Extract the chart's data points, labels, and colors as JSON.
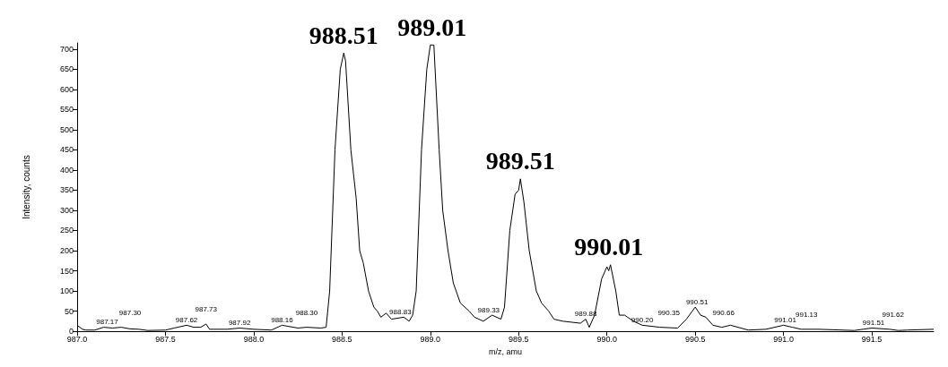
{
  "chart_data": {
    "type": "line",
    "xlabel": "m/z, amu",
    "ylabel": "Intensity, counts",
    "x": [
      987.0,
      987.03,
      987.05,
      987.1,
      987.15,
      987.2,
      987.25,
      987.3,
      987.35,
      987.4,
      987.5,
      987.55,
      987.62,
      987.66,
      987.7,
      987.73,
      987.75,
      987.85,
      987.92,
      988.0,
      988.1,
      988.16,
      988.25,
      988.3,
      988.38,
      988.41,
      988.43,
      988.46,
      988.49,
      988.51,
      988.52,
      988.55,
      988.58,
      988.6,
      988.62,
      988.65,
      988.68,
      988.7,
      988.72,
      988.75,
      988.78,
      988.85,
      988.88,
      988.9,
      988.92,
      988.95,
      988.98,
      989.0,
      989.02,
      989.05,
      989.07,
      989.1,
      989.13,
      989.17,
      989.22,
      989.25,
      989.3,
      989.35,
      989.4,
      989.42,
      989.45,
      989.48,
      989.5,
      989.51,
      989.53,
      989.56,
      989.6,
      989.63,
      989.67,
      989.7,
      989.75,
      989.85,
      989.88,
      989.9,
      989.93,
      989.97,
      990.0,
      990.01,
      990.02,
      990.05,
      990.07,
      990.1,
      990.15,
      990.2,
      990.3,
      990.4,
      990.45,
      990.5,
      990.53,
      990.56,
      990.6,
      990.65,
      990.7,
      990.8,
      990.9,
      991.0,
      991.05,
      991.1,
      991.2,
      991.4,
      991.5,
      991.6,
      991.65,
      991.7,
      991.85
    ],
    "series": [
      {
        "color": "#000000",
        "values": [
          15,
          5,
          3,
          3,
          10,
          8,
          10,
          6,
          5,
          2,
          3,
          8,
          15,
          10,
          10,
          18,
          5,
          5,
          8,
          5,
          3,
          15,
          8,
          10,
          8,
          10,
          100,
          450,
          650,
          690,
          670,
          450,
          330,
          200,
          170,
          100,
          60,
          50,
          35,
          45,
          30,
          35,
          25,
          40,
          100,
          450,
          650,
          710,
          710,
          450,
          300,
          200,
          120,
          70,
          50,
          35,
          25,
          40,
          30,
          60,
          250,
          340,
          350,
          378,
          320,
          200,
          100,
          70,
          50,
          30,
          25,
          20,
          30,
          10,
          40,
          130,
          160,
          150,
          165,
          100,
          40,
          40,
          25,
          15,
          10,
          8,
          30,
          60,
          40,
          35,
          15,
          10,
          15,
          3,
          5,
          15,
          10,
          5,
          5,
          2,
          8,
          5,
          2,
          3,
          5
        ]
      }
    ],
    "xlim": [
      987,
      991.85
    ],
    "ylim": [
      0,
      715
    ],
    "xticks": [
      {
        "value": 987,
        "label": "987.0"
      },
      {
        "value": 987.5,
        "label": "987.5"
      },
      {
        "value": 988,
        "label": "988.0"
      },
      {
        "value": 988.5,
        "label": "988.5"
      },
      {
        "value": 989,
        "label": "989.0"
      },
      {
        "value": 989.5,
        "label": "989.5"
      },
      {
        "value": 990,
        "label": "990.0"
      },
      {
        "value": 990.5,
        "label": "990.5"
      },
      {
        "value": 991,
        "label": "991.0"
      },
      {
        "value": 991.5,
        "label": "991.5"
      }
    ],
    "yticks": [
      0,
      50,
      100,
      150,
      200,
      250,
      300,
      350,
      400,
      450,
      500,
      550,
      600,
      650,
      700
    ],
    "grid": false,
    "marker": "none",
    "line_style": "solid",
    "annotations": [
      {
        "text": "988.51",
        "x": 988.51,
        "y": 690
      },
      {
        "text": "989.01",
        "x": 989.01,
        "y": 710
      },
      {
        "text": "989.51",
        "x": 989.51,
        "y": 378
      },
      {
        "text": "990.01",
        "x": 990.01,
        "y": 165
      },
      {
        "text": "987.17",
        "x": 987.17,
        "y": 10
      },
      {
        "text": "987.30",
        "x": 987.3,
        "y": 10
      },
      {
        "text": "987.62",
        "x": 987.62,
        "y": 15
      },
      {
        "text": "987.73",
        "x": 987.73,
        "y": 18
      },
      {
        "text": "987.92",
        "x": 987.92,
        "y": 8
      },
      {
        "text": "988.16",
        "x": 988.16,
        "y": 15
      },
      {
        "text": "988.30",
        "x": 988.3,
        "y": 10
      },
      {
        "text": "988.83",
        "x": 988.83,
        "y": 35
      },
      {
        "text": "989.33",
        "x": 989.33,
        "y": 40
      },
      {
        "text": "989.88",
        "x": 989.88,
        "y": 30
      },
      {
        "text": "990.20",
        "x": 990.2,
        "y": 15
      },
      {
        "text": "990.35",
        "x": 990.35,
        "y": 10
      },
      {
        "text": "990.51",
        "x": 990.51,
        "y": 60
      },
      {
        "text": "990.66",
        "x": 990.66,
        "y": 10
      },
      {
        "text": "991.01",
        "x": 991.01,
        "y": 15
      },
      {
        "text": "991.13",
        "x": 991.13,
        "y": 5
      },
      {
        "text": "991.51",
        "x": 991.51,
        "y": 8
      },
      {
        "text": "991.62",
        "x": 991.62,
        "y": 5
      }
    ]
  }
}
